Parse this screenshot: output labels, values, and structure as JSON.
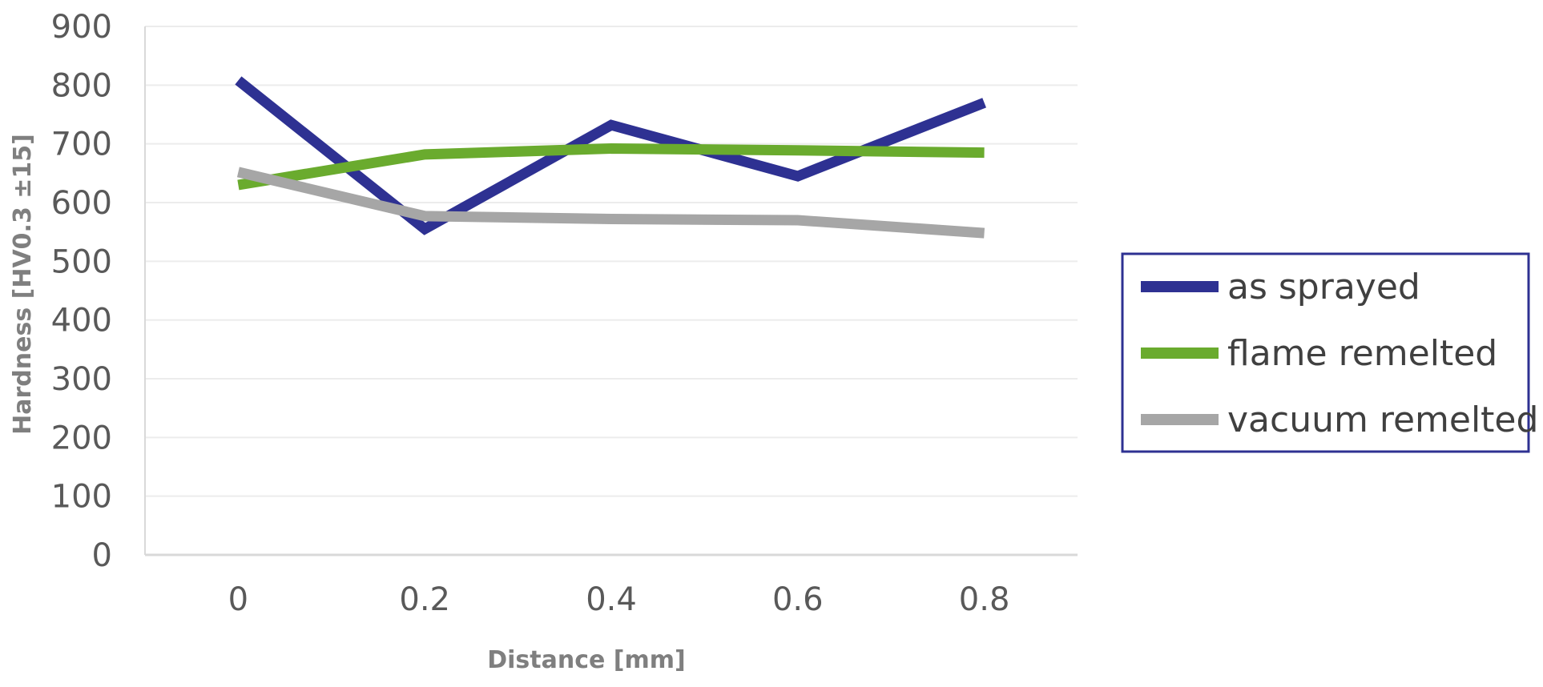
{
  "chart_data": {
    "type": "line",
    "title": "",
    "xlabel": "Distance [mm]",
    "ylabel": "Hardness [HV0.3 ±15]",
    "categories": [
      "0",
      "0.2",
      "0.4",
      "0.6",
      "0.8"
    ],
    "ylim": [
      0,
      900
    ],
    "yticks": [
      "0",
      "100",
      "200",
      "300",
      "400",
      "500",
      "600",
      "700",
      "800",
      "900"
    ],
    "grid": true,
    "legend_position": "right",
    "series": [
      {
        "name": "as sprayed",
        "color": "#2e3192",
        "values": [
          808,
          555,
          732,
          645,
          770
        ]
      },
      {
        "name": "flame remelted",
        "color": "#6aab2e",
        "values": [
          630,
          682,
          692,
          689,
          685
        ]
      },
      {
        "name": "vacuum remelted",
        "color": "#a6a6a6",
        "values": [
          652,
          577,
          572,
          570,
          548
        ]
      }
    ],
    "legend_border_color": "#2e3192"
  }
}
